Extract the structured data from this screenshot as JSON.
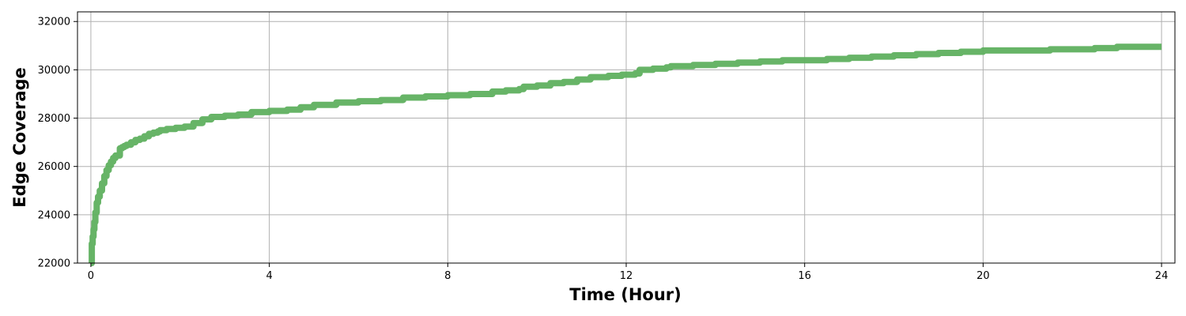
{
  "chart_data": {
    "type": "line",
    "xlabel": "Time (Hour)",
    "ylabel": "Edge Coverage",
    "xlim": [
      -0.3,
      24.3
    ],
    "ylim": [
      22000,
      32400
    ],
    "xticks": [
      0,
      4,
      8,
      12,
      16,
      20,
      24
    ],
    "xtick_labels": [
      "0",
      "4",
      "8",
      "12",
      "16",
      "20",
      "24"
    ],
    "yticks": [
      22000,
      24000,
      26000,
      28000,
      30000,
      32000
    ],
    "ytick_labels": [
      "22000",
      "24000",
      "26000",
      "28000",
      "30000",
      "32000"
    ],
    "grid": true,
    "legend": "none",
    "series": [
      {
        "color": "#5fb05f",
        "x": [
          0.0,
          0.02,
          0.04,
          0.06,
          0.08,
          0.1,
          0.13,
          0.16,
          0.2,
          0.25,
          0.3,
          0.35,
          0.4,
          0.45,
          0.5,
          0.55,
          0.6,
          0.65,
          0.7,
          0.75,
          0.8,
          0.82,
          0.9,
          1.0,
          1.1,
          1.2,
          1.3,
          1.4,
          1.5,
          1.55,
          1.7,
          1.9,
          2.1,
          2.3,
          2.5,
          2.7,
          3.0,
          3.3,
          3.6,
          4.0,
          4.4,
          4.7,
          5.0,
          5.5,
          6.0,
          6.5,
          7.0,
          7.5,
          8.0,
          8.5,
          8.8,
          9.0,
          9.3,
          9.6,
          9.7,
          10.0,
          10.3,
          10.6,
          10.9,
          11.2,
          11.6,
          11.9,
          12.2,
          12.3,
          12.6,
          12.9,
          13.0,
          13.5,
          14.0,
          14.5,
          15.0,
          15.5,
          16.0,
          16.5,
          17.0,
          17.5,
          18.0,
          18.5,
          18.9,
          19.0,
          19.5,
          20.0,
          20.5,
          21.0,
          21.5,
          22.0,
          22.5,
          23.0,
          23.5,
          24.0
        ],
        "y": [
          22000,
          22800,
          23100,
          23400,
          23700,
          24100,
          24500,
          24750,
          25000,
          25300,
          25600,
          25850,
          26050,
          26200,
          26350,
          26450,
          26450,
          26750,
          26800,
          26850,
          26900,
          26900,
          27000,
          27100,
          27150,
          27250,
          27350,
          27400,
          27450,
          27500,
          27550,
          27600,
          27650,
          27800,
          27950,
          28050,
          28100,
          28150,
          28250,
          28300,
          28350,
          28450,
          28550,
          28650,
          28700,
          28750,
          28850,
          28900,
          28950,
          29000,
          29000,
          29100,
          29150,
          29200,
          29300,
          29350,
          29450,
          29500,
          29600,
          29700,
          29750,
          29800,
          29850,
          30000,
          30050,
          30100,
          30150,
          30200,
          30250,
          30300,
          30350,
          30400,
          30400,
          30450,
          30500,
          30550,
          30600,
          30650,
          30650,
          30700,
          30750,
          30800,
          30800,
          30800,
          30850,
          30850,
          30900,
          30950,
          30950,
          30950
        ]
      }
    ]
  }
}
